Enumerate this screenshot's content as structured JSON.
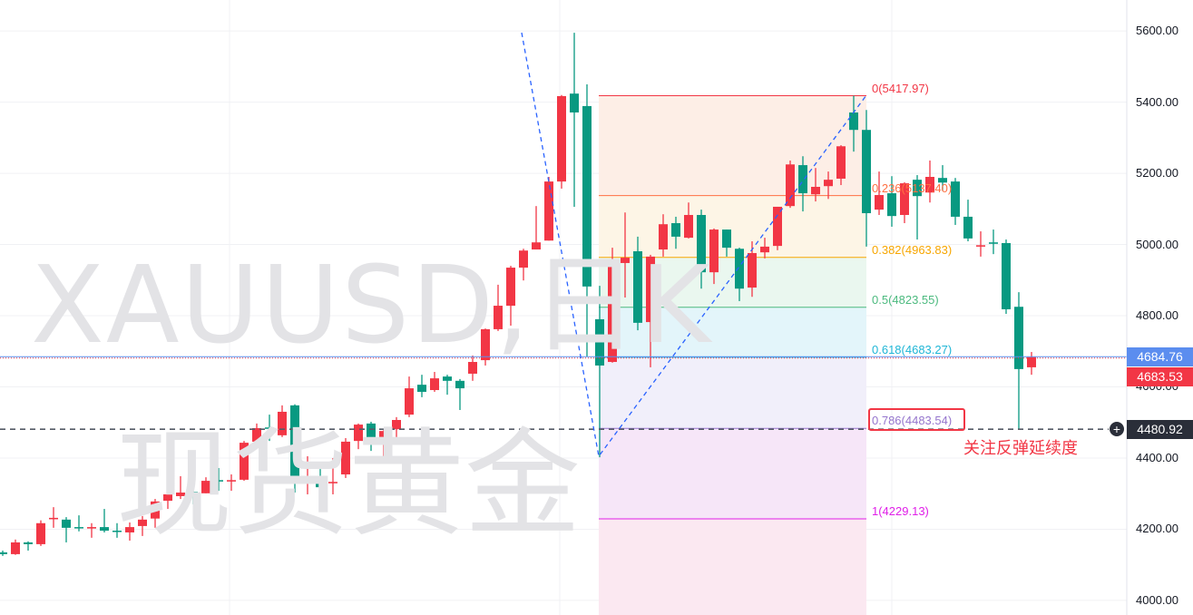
{
  "chart_data": {
    "type": "candlestick",
    "title": "XAUUSD,日K",
    "subtitle": "现货黄金",
    "up_color": "#f23645",
    "down_color": "#089981",
    "ylim": [
      3959,
      5687
    ],
    "grid": true,
    "y_ticks": [
      "5600.00",
      "5400.00",
      "5200.00",
      "5000.00",
      "4800.00",
      "4600.00",
      "4400.00",
      "4200.00",
      "4000.00"
    ],
    "y_tick_values": [
      5600,
      5400,
      5200,
      5000,
      4800,
      4600,
      4400,
      4200,
      4000
    ],
    "ohlc": [
      [
        4135,
        4140,
        4125,
        4130
      ],
      [
        4130,
        4171,
        4128,
        4163
      ],
      [
        4163,
        4166,
        4140,
        4158
      ],
      [
        4158,
        4225,
        4153,
        4217
      ],
      [
        4228,
        4262,
        4204,
        4232
      ],
      [
        4227,
        4234,
        4163,
        4204
      ],
      [
        4206,
        4239,
        4194,
        4203
      ],
      [
        4202,
        4217,
        4176,
        4206
      ],
      [
        4206,
        4257,
        4191,
        4196
      ],
      [
        4196,
        4217,
        4176,
        4193
      ],
      [
        4191,
        4219,
        4168,
        4206
      ],
      [
        4209,
        4237,
        4181,
        4227
      ],
      [
        4230,
        4285,
        4204,
        4278
      ],
      [
        4280,
        4352,
        4257,
        4298
      ],
      [
        4293,
        4349,
        4285,
        4303
      ],
      [
        4305,
        4331,
        4270,
        4301
      ],
      [
        4301,
        4346,
        4301,
        4336
      ],
      [
        4338,
        4372,
        4308,
        4334
      ],
      [
        4334,
        4354,
        4308,
        4338
      ],
      [
        4339,
        4448,
        4336,
        4443
      ],
      [
        4446,
        4497,
        4430,
        4484
      ],
      [
        4486,
        4522,
        4448,
        4482
      ],
      [
        4464,
        4548,
        4459,
        4530
      ],
      [
        4548,
        4551,
        4303,
        4331
      ],
      [
        4334,
        4405,
        4298,
        4338
      ],
      [
        4341,
        4369,
        4285,
        4318
      ],
      [
        4329,
        4400,
        4298,
        4333
      ],
      [
        4354,
        4456,
        4344,
        4446
      ],
      [
        4448,
        4497,
        4425,
        4494
      ],
      [
        4497,
        4502,
        4420,
        4456
      ],
      [
        4459,
        4481,
        4405,
        4476
      ],
      [
        4481,
        4515,
        4451,
        4507
      ],
      [
        4522,
        4629,
        4515,
        4596
      ],
      [
        4606,
        4634,
        4571,
        4586
      ],
      [
        4591,
        4642,
        4586,
        4624
      ],
      [
        4629,
        4634,
        4578,
        4617
      ],
      [
        4617,
        4622,
        4535,
        4596
      ],
      [
        4637,
        4688,
        4617,
        4670
      ],
      [
        4675,
        4764,
        4660,
        4762
      ],
      [
        4762,
        4887,
        4757,
        4828
      ],
      [
        4828,
        4940,
        4772,
        4935
      ],
      [
        4935,
        4988,
        4899,
        4983
      ],
      [
        4986,
        5108,
        4986,
        5006
      ],
      [
        5011,
        5190,
        5011,
        5177
      ],
      [
        5177,
        5420,
        5157,
        5417
      ],
      [
        5424,
        5595,
        5106,
        5371
      ],
      [
        5389,
        5450,
        4685,
        4882
      ],
      [
        4790,
        4884,
        4402,
        4660
      ],
      [
        4670,
        4991,
        4668,
        4945
      ],
      [
        4948,
        5090,
        4851,
        4963
      ],
      [
        4981,
        5022,
        4759,
        4780
      ],
      [
        4782,
        4971,
        4655,
        4966
      ],
      [
        4986,
        5085,
        4966,
        5057
      ],
      [
        5060,
        5078,
        4988,
        5022
      ],
      [
        5019,
        5118,
        5017,
        5083
      ],
      [
        5083,
        5098,
        4876,
        4922
      ],
      [
        4922,
        5045,
        4889,
        5042
      ],
      [
        5042,
        5042,
        4966,
        4991
      ],
      [
        4988,
        4991,
        4841,
        4876
      ],
      [
        4879,
        5009,
        4853,
        4976
      ],
      [
        4978,
        5019,
        4961,
        4994
      ],
      [
        4996,
        5106,
        4984,
        5106
      ],
      [
        5108,
        5236,
        5103,
        5225
      ],
      [
        5223,
        5248,
        5093,
        5144
      ],
      [
        5141,
        5215,
        5121,
        5162
      ],
      [
        5164,
        5205,
        5128,
        5182
      ],
      [
        5185,
        5279,
        5167,
        5276
      ],
      [
        5371,
        5418,
        5261,
        5322
      ],
      [
        5322,
        5378,
        4994,
        5088
      ],
      [
        5098,
        5205,
        5083,
        5139
      ],
      [
        5144,
        5192,
        5050,
        5080
      ],
      [
        5083,
        5175,
        5060,
        5172
      ],
      [
        5182,
        5195,
        5014,
        5136
      ],
      [
        5146,
        5236,
        5118,
        5190
      ],
      [
        5187,
        5223,
        5151,
        5174
      ],
      [
        5177,
        5187,
        5055,
        5078
      ],
      [
        5078,
        5126,
        5009,
        5017
      ],
      [
        4994,
        5037,
        4966,
        4998
      ],
      [
        5006,
        5042,
        4973,
        5002
      ],
      [
        5004,
        5014,
        4805,
        4818
      ],
      [
        4825,
        4866,
        4481,
        4650
      ],
      [
        4655,
        4698,
        4634,
        4683.53
      ]
    ],
    "fibonacci": {
      "levels": [
        {
          "ratio": 0,
          "price": 5417.97,
          "label": "0(5417.97)",
          "color": "#f23645",
          "fill": "#fdeee6"
        },
        {
          "ratio": 0.236,
          "price": 5137.4,
          "label": "0.236(5137.40)",
          "color": "#ff7043",
          "fill": "#fdf5e6"
        },
        {
          "ratio": 0.382,
          "price": 4963.83,
          "label": "0.382(4963.83)",
          "color": "#f7a600",
          "fill": "#eaf7ef"
        },
        {
          "ratio": 0.5,
          "price": 4823.55,
          "label": "0.5(4823.55)",
          "color": "#4cba7f",
          "fill": "#e3f5fa"
        },
        {
          "ratio": 0.618,
          "price": 4683.27,
          "label": "0.618(4683.27)",
          "color": "#1fb6d6",
          "fill": "#f1effa"
        },
        {
          "ratio": 0.786,
          "price": 4483.54,
          "label": "0.786(4483.54)",
          "color": "#9575cd",
          "fill": "#f6e6f8"
        },
        {
          "ratio": 1,
          "price": 4229.13,
          "label": "1(4229.13)",
          "color": "#e020e8",
          "fill": "#fbe8f1"
        }
      ]
    },
    "last_price": {
      "value": "4683.53",
      "color": "#f23645"
    },
    "blue_price": {
      "value": "4684.76",
      "color": "#5b8def"
    },
    "horizontal_line": {
      "value": "4480.92",
      "price": 4480.92
    },
    "annotation": "关注反弹延续度"
  }
}
